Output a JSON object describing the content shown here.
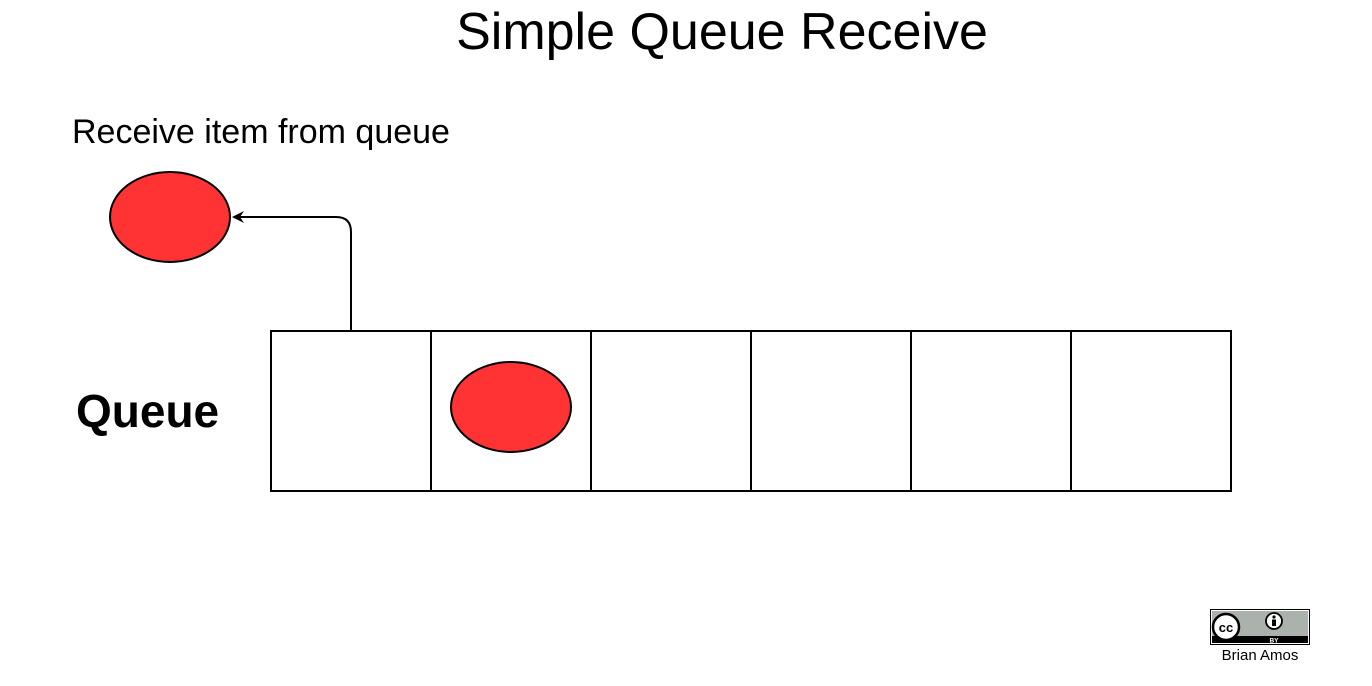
{
  "title": "Simple Queue Receive",
  "step_label": "Receive item from queue",
  "queue_label": "Queue",
  "queue": {
    "slot_count": 6,
    "occupied_slots": [
      2
    ],
    "received_from_slot": 1
  },
  "colors": {
    "item_fill": "#ff3333",
    "stroke": "#000000",
    "background": "#ffffff",
    "badge_gray": "#aab2ab"
  },
  "license": {
    "badge_text_left": "cc",
    "badge_text_by": "BY",
    "author": "Brian Amos"
  },
  "icons": [
    "cc-icon",
    "attribution-icon",
    "arrow-icon"
  ]
}
